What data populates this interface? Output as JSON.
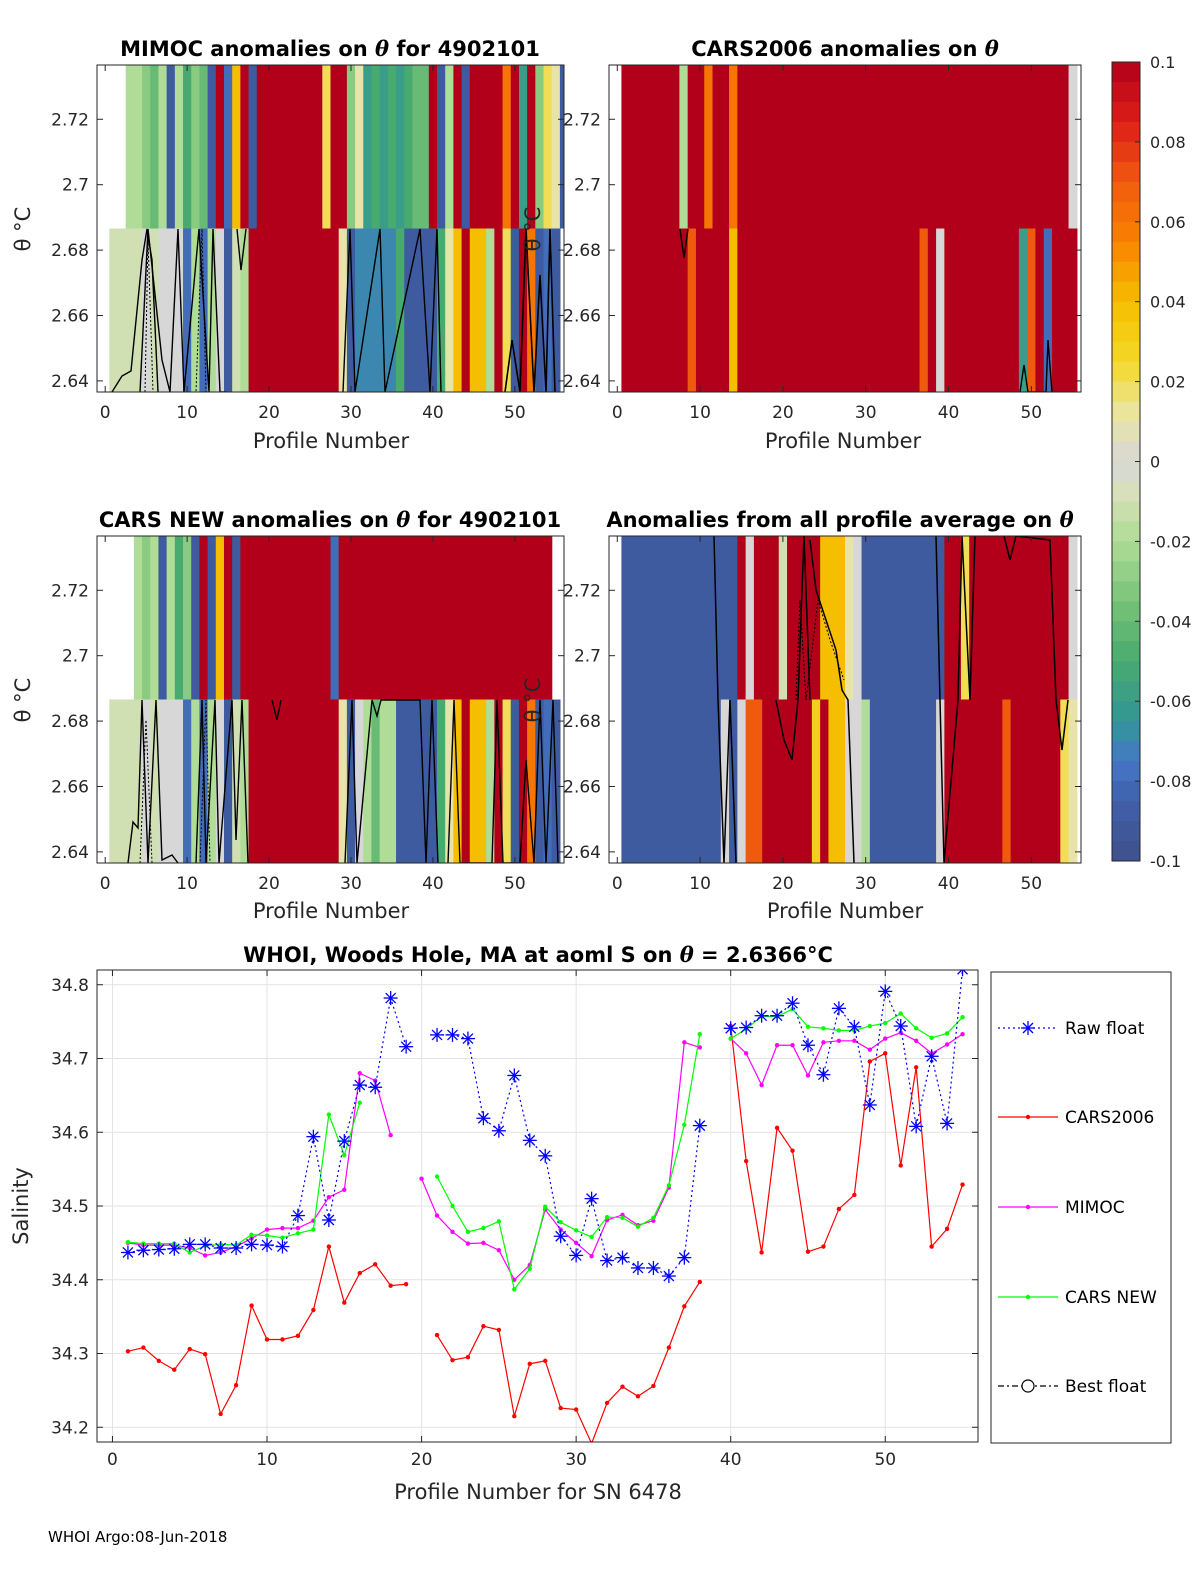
{
  "figure": {
    "footer": "WHOI Argo:08-Jun-2018"
  },
  "colorbar": {
    "min": -0.1,
    "max": 0.1,
    "tick_values": [
      0.1,
      0.08,
      0.06,
      0.04,
      0.02,
      0,
      -0.02,
      -0.04,
      -0.06,
      -0.08,
      -0.1
    ],
    "tick_labels": [
      "0.1",
      "0.08",
      "0.06",
      "0.04",
      "0.02",
      "0",
      "-0.02",
      "-0.04",
      "-0.06",
      "-0.08",
      "-0.1"
    ]
  },
  "chart_data": [
    {
      "id": "mimoc",
      "type": "heatmap",
      "title_main": "MIMOC anomalies on ",
      "title_sym": "θ",
      "title_tail": "  for 4902101",
      "xlabel": "Profile Number",
      "ylabel": "θ °C",
      "xlim": [
        -1,
        56
      ],
      "ylim": [
        2.6366,
        2.7366
      ],
      "xticks": [
        0,
        10,
        20,
        30,
        40,
        50
      ],
      "xtick_labels": [
        "0",
        "10",
        "20",
        "30",
        "40",
        "50"
      ],
      "yticks": [
        2.64,
        2.66,
        2.68,
        2.7,
        2.72
      ],
      "ytick_labels": [
        "2.64",
        "2.66",
        "2.68",
        "2.7",
        "2.72"
      ],
      "row_split": 2.6866,
      "upper_x_start": 3,
      "upper_anomalies": [
        -0.02,
        -0.02,
        -0.03,
        -0.04,
        -0.02,
        -0.09,
        -0.02,
        -0.05,
        -0.03,
        -0.04,
        -0.09,
        0.1,
        -0.08,
        0.04,
        0.1,
        -0.09,
        0.1,
        0.1,
        0.1,
        0.1,
        0.1,
        0.1,
        0.1,
        0.1,
        0.02,
        0.1,
        0.1,
        -0.03,
        0.01,
        -0.06,
        -0.05,
        -0.06,
        -0.05,
        -0.06,
        -0.05,
        -0.04,
        -0.04,
        0.1,
        -0.09,
        -0.02,
        0.1,
        -0.09,
        0.1,
        0.1,
        0.1,
        0.1,
        0.06,
        0.1,
        -0.06,
        0.1,
        -0.03,
        0.02,
        0.01,
        -0.09
      ],
      "lower_x_start": 1,
      "lower_anomalies": [
        -0.01,
        -0.01,
        -0.01,
        -0.01,
        0.0,
        -0.01,
        0.0,
        0.0,
        0.0,
        -0.08,
        -0.02,
        -0.08,
        -0.02,
        0.0,
        -0.09,
        -0.01,
        -0.02,
        0.1,
        0.1,
        0.1,
        0.1,
        0.1,
        0.1,
        0.1,
        0.1,
        0.1,
        0.1,
        0.1,
        0.01,
        -0.09,
        -0.07,
        -0.07,
        -0.07,
        -0.07,
        -0.07,
        -0.05,
        -0.09,
        -0.09,
        -0.09,
        -0.09,
        -0.05,
        0.01,
        0.04,
        0.1,
        0.04,
        0.04,
        -0.02,
        0.1,
        0.02,
        -0.09,
        0.1,
        0.06,
        -0.09,
        -0.08,
        -0.09
      ]
    },
    {
      "id": "cars2006",
      "type": "heatmap",
      "title_main": "CARS2006 anomalies on ",
      "title_sym": "θ",
      "title_tail": "",
      "xlabel": "Profile Number",
      "ylabel": "θ °C",
      "xlim": [
        -1,
        56
      ],
      "ylim": [
        2.6366,
        2.7366
      ],
      "xticks": [
        0,
        10,
        20,
        30,
        40,
        50
      ],
      "xtick_labels": [
        "0",
        "10",
        "20",
        "30",
        "40",
        "50"
      ],
      "yticks": [
        2.64,
        2.66,
        2.68,
        2.7,
        2.72
      ],
      "ytick_labels": [
        "2.64",
        "2.66",
        "2.68",
        "2.7",
        "2.72"
      ],
      "row_split": 2.6866,
      "upper_x_start": 1,
      "upper_anomalies": [
        0.1,
        0.1,
        0.1,
        0.1,
        0.1,
        0.1,
        0.1,
        -0.02,
        0.1,
        0.1,
        0.06,
        0.1,
        0.1,
        0.06,
        0.1,
        0.1,
        0.1,
        0.1,
        0.1,
        0.1,
        0.1,
        0.1,
        0.1,
        0.1,
        0.1,
        0.1,
        0.1,
        0.1,
        0.1,
        0.1,
        0.1,
        0.1,
        0.1,
        0.1,
        0.1,
        0.1,
        0.1,
        0.1,
        0.1,
        0.1,
        0.1,
        0.1,
        0.1,
        0.1,
        0.1,
        0.1,
        0.1,
        0.1,
        0.1,
        0.1,
        0.1,
        0.1,
        0.1,
        0.1,
        0.0
      ],
      "lower_x_start": 1,
      "lower_anomalies": [
        0.1,
        0.1,
        0.1,
        0.1,
        0.1,
        0.1,
        0.1,
        0.1,
        0.07,
        0.1,
        0.1,
        0.1,
        0.1,
        0.04,
        0.1,
        0.1,
        0.1,
        0.1,
        0.1,
        0.1,
        0.1,
        0.1,
        0.1,
        0.1,
        0.1,
        0.1,
        0.1,
        0.1,
        0.1,
        0.1,
        0.1,
        0.1,
        0.1,
        0.1,
        0.1,
        0.1,
        0.07,
        0.1,
        0.0,
        0.1,
        0.1,
        0.1,
        0.1,
        0.1,
        0.1,
        0.1,
        0.1,
        0.1,
        -0.06,
        0.07,
        0.1,
        -0.08,
        0.1,
        0.1,
        0.1
      ]
    },
    {
      "id": "carsnew",
      "type": "heatmap",
      "title_main": "CARS NEW anomalies on ",
      "title_sym": "θ",
      "title_tail": " for 4902101",
      "xlabel": "Profile Number",
      "ylabel": "θ °C",
      "xlim": [
        -1,
        56
      ],
      "ylim": [
        2.6366,
        2.7366
      ],
      "xticks": [
        0,
        10,
        20,
        30,
        40,
        50
      ],
      "xtick_labels": [
        "0",
        "10",
        "20",
        "30",
        "40",
        "50"
      ],
      "yticks": [
        2.64,
        2.66,
        2.68,
        2.7,
        2.72
      ],
      "ytick_labels": [
        "2.64",
        "2.66",
        "2.68",
        "2.7",
        "2.72"
      ],
      "row_split": 2.6866,
      "upper_x_start": 4,
      "upper_anomalies": [
        -0.02,
        -0.03,
        -0.02,
        -0.09,
        -0.02,
        -0.05,
        -0.03,
        -0.09,
        0.1,
        -0.09,
        0.04,
        0.1,
        -0.09,
        0.1,
        0.1,
        0.1,
        0.1,
        0.1,
        0.1,
        0.1,
        0.1,
        0.1,
        0.1,
        0.1,
        -0.08,
        0.1,
        0.1,
        0.1,
        0.1,
        0.1,
        0.1,
        0.1,
        0.1,
        0.1,
        0.1,
        0.1,
        0.1,
        0.1,
        0.1,
        0.1,
        0.1,
        0.1,
        0.1,
        0.1,
        0.1,
        0.1,
        0.1,
        0.1,
        0.1,
        0.1,
        0.1
      ],
      "lower_x_start": 1,
      "lower_anomalies": [
        -0.01,
        -0.01,
        -0.01,
        -0.01,
        0.0,
        -0.01,
        0.0,
        0.0,
        0.0,
        -0.08,
        -0.02,
        -0.08,
        -0.02,
        0.0,
        -0.09,
        -0.01,
        -0.02,
        0.1,
        0.1,
        0.1,
        0.1,
        0.1,
        0.1,
        0.1,
        0.1,
        0.1,
        0.1,
        0.1,
        0.01,
        -0.09,
        0.0,
        -0.02,
        -0.04,
        -0.02,
        -0.02,
        -0.09,
        -0.09,
        -0.09,
        -0.09,
        -0.09,
        -0.05,
        0.01,
        0.04,
        0.1,
        0.04,
        0.04,
        -0.02,
        0.1,
        0.02,
        -0.09,
        0.1,
        0.06,
        -0.09,
        -0.08,
        -0.09
      ]
    },
    {
      "id": "allprofile",
      "type": "heatmap",
      "title_main": "Anomalies from all profile average on ",
      "title_sym": "θ",
      "title_tail": "",
      "xlabel": "Profile Number",
      "ylabel": "θ °C",
      "xlim": [
        -1,
        56
      ],
      "ylim": [
        2.6366,
        2.7366
      ],
      "xticks": [
        0,
        10,
        20,
        30,
        40,
        50
      ],
      "xtick_labels": [
        "0",
        "10",
        "20",
        "30",
        "40",
        "50"
      ],
      "yticks": [
        2.64,
        2.66,
        2.68,
        2.7,
        2.72
      ],
      "ytick_labels": [
        "2.64",
        "2.66",
        "2.68",
        "2.7",
        "2.72"
      ],
      "row_split": 2.6866,
      "upper_x_start": 1,
      "upper_anomalies": [
        -0.09,
        -0.09,
        -0.09,
        -0.09,
        -0.09,
        -0.09,
        -0.09,
        -0.09,
        -0.09,
        -0.09,
        -0.09,
        -0.09,
        -0.09,
        -0.09,
        0.1,
        0.0,
        0.1,
        0.1,
        0.1,
        -0.01,
        0.1,
        0.1,
        0.1,
        0.1,
        0.04,
        0.04,
        0.04,
        0.01,
        0.0,
        -0.09,
        -0.09,
        -0.09,
        -0.09,
        -0.09,
        -0.09,
        -0.09,
        -0.09,
        -0.09,
        -0.09,
        0.1,
        0.1,
        0.02,
        0.1,
        0.1,
        0.1,
        0.1,
        0.1,
        0.1,
        0.1,
        0.1,
        0.1,
        0.1,
        0.1,
        0.1,
        0.0
      ],
      "lower_x_start": 1,
      "lower_anomalies": [
        -0.09,
        -0.09,
        -0.09,
        -0.09,
        -0.09,
        -0.09,
        -0.09,
        -0.09,
        -0.09,
        -0.09,
        -0.09,
        -0.09,
        0.0,
        -0.09,
        0.0,
        0.07,
        0.07,
        0.1,
        0.1,
        0.1,
        0.1,
        0.1,
        0.1,
        0.03,
        0.1,
        0.04,
        0.04,
        0.0,
        0.0,
        -0.02,
        -0.09,
        -0.09,
        -0.09,
        -0.09,
        -0.09,
        -0.09,
        -0.09,
        -0.09,
        0.0,
        0.1,
        0.1,
        0.1,
        0.1,
        0.1,
        0.1,
        0.1,
        0.07,
        0.1,
        0.1,
        0.1,
        0.1,
        0.1,
        0.1,
        0.02,
        0.01
      ]
    },
    {
      "id": "salinity",
      "type": "line",
      "title_main": "WHOI, Woods Hole, MA at aoml S on ",
      "title_sym": "θ",
      "title_tail": " = 2.6366°C",
      "xlabel": "Profile Number for SN 6478",
      "ylabel": "Salinity",
      "xlim": [
        -1,
        56
      ],
      "ylim": [
        34.18,
        34.82
      ],
      "xticks": [
        0,
        10,
        20,
        30,
        40,
        50
      ],
      "xtick_labels": [
        "0",
        "10",
        "20",
        "30",
        "40",
        "50"
      ],
      "yticks": [
        34.2,
        34.3,
        34.4,
        34.5,
        34.6,
        34.7,
        34.8
      ],
      "ytick_labels": [
        "34.2",
        "34.3",
        "34.4",
        "34.5",
        "34.6",
        "34.7",
        "34.8"
      ],
      "x": [
        1,
        2,
        3,
        4,
        5,
        6,
        7,
        8,
        9,
        10,
        11,
        12,
        13,
        14,
        15,
        16,
        17,
        18,
        19,
        20,
        21,
        22,
        23,
        24,
        25,
        26,
        27,
        28,
        29,
        30,
        31,
        32,
        33,
        34,
        35,
        36,
        37,
        38,
        39,
        40,
        41,
        42,
        43,
        44,
        45,
        46,
        47,
        48,
        49,
        50,
        51,
        52,
        53,
        54,
        55
      ],
      "series": [
        {
          "name": "Raw float",
          "color": "#0000ff",
          "style": "dotted",
          "marker": "star",
          "values": [
            34.437,
            34.44,
            34.441,
            34.442,
            34.448,
            34.448,
            34.443,
            34.443,
            34.448,
            34.447,
            34.445,
            34.487,
            34.594,
            34.481,
            34.588,
            34.664,
            34.661,
            34.782,
            34.716,
            null,
            34.732,
            34.732,
            34.727,
            34.619,
            34.602,
            34.677,
            34.589,
            34.568,
            34.459,
            34.433,
            34.51,
            34.426,
            34.43,
            34.416,
            34.416,
            34.405,
            34.43,
            34.609,
            null,
            34.741,
            34.742,
            34.758,
            34.758,
            34.775,
            34.718,
            34.678,
            34.768,
            34.743,
            34.637,
            34.791,
            34.744,
            34.608,
            34.703,
            34.612,
            34.821
          ]
        },
        {
          "name": "CARS2006",
          "color": "#ff0000",
          "style": "solid",
          "marker": "dot",
          "values": [
            34.303,
            34.308,
            34.29,
            34.278,
            34.306,
            34.299,
            34.218,
            34.257,
            34.365,
            34.319,
            34.319,
            34.324,
            34.359,
            34.445,
            34.369,
            34.409,
            34.421,
            34.392,
            34.394,
            null,
            34.325,
            34.291,
            34.295,
            34.337,
            34.332,
            34.215,
            34.286,
            34.29,
            34.226,
            34.224,
            34.178,
            34.233,
            34.255,
            34.242,
            34.256,
            34.308,
            34.364,
            34.397,
            null,
            34.744,
            34.561,
            34.437,
            34.606,
            34.575,
            34.438,
            34.445,
            34.496,
            34.515,
            34.696,
            34.707,
            34.555,
            34.688,
            34.445,
            34.469,
            34.529
          ]
        },
        {
          "name": "MIMOC",
          "color": "#ff00ff",
          "style": "solid",
          "marker": "dot",
          "values": [
            34.45,
            34.447,
            34.447,
            34.447,
            34.443,
            34.433,
            34.437,
            34.445,
            34.456,
            34.468,
            34.47,
            34.47,
            34.48,
            34.512,
            34.522,
            34.68,
            34.67,
            34.596,
            null,
            34.537,
            34.487,
            34.465,
            34.449,
            34.45,
            34.44,
            34.4,
            34.42,
            34.495,
            34.468,
            34.45,
            34.432,
            34.481,
            34.488,
            34.474,
            34.48,
            34.525,
            34.722,
            34.715,
            null,
            34.727,
            34.707,
            34.664,
            34.718,
            34.718,
            34.677,
            34.722,
            34.724,
            34.724,
            34.712,
            34.727,
            34.735,
            34.724,
            34.707,
            34.719,
            34.733
          ]
        },
        {
          "name": "CARS NEW",
          "color": "#00ff00",
          "style": "solid",
          "marker": "dot",
          "values": [
            34.451,
            34.449,
            34.449,
            34.449,
            34.437,
            34.446,
            34.448,
            34.447,
            34.461,
            34.46,
            34.457,
            34.463,
            34.468,
            34.624,
            34.569,
            34.64,
            null,
            null,
            null,
            null,
            34.54,
            34.5,
            34.465,
            34.47,
            34.479,
            34.387,
            34.415,
            34.499,
            34.478,
            34.467,
            34.458,
            34.485,
            34.484,
            34.472,
            34.484,
            34.528,
            34.61,
            34.733,
            null,
            34.727,
            34.74,
            34.757,
            34.757,
            34.767,
            34.743,
            34.741,
            34.738,
            34.738,
            34.744,
            34.748,
            34.761,
            34.741,
            34.728,
            34.734,
            34.756
          ]
        }
      ],
      "legend": {
        "placement": "outside-right",
        "entries": [
          "Raw float",
          "CARS2006",
          "MIMOC",
          "CARS NEW",
          "Best float"
        ],
        "best_float_color": "#000000"
      }
    }
  ]
}
